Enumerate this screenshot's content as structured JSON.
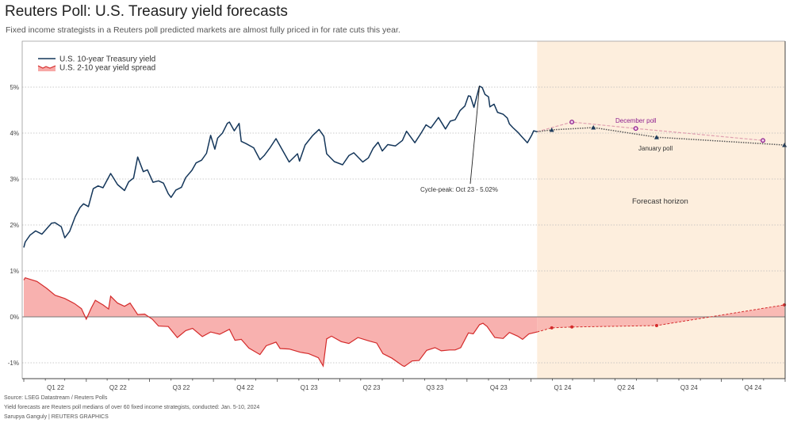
{
  "title": "Reuters Poll: U.S. Treasury yield forecasts",
  "subtitle": "Fixed income strategists in a Reuters poll predicted markets are almost fully priced in for rate cuts this year.",
  "footer": {
    "source": "Source: LSEG Datastream / Reuters Polls",
    "note": "Yield forecasts are Reuters poll medians of over 60 fixed income strategists, conducted: Jan. 5-10, 2024",
    "credit": "Sarupya Ganguly | REUTERS GRAPHICS"
  },
  "chart_data": {
    "type": "line",
    "title": "Reuters Poll: U.S. Treasury yield forecasts",
    "xlim": [
      "2022-01-01",
      "2024-12-31"
    ],
    "ylim": [
      -1.4,
      6
    ],
    "yticks": [
      -1,
      0,
      1,
      2,
      3,
      4,
      5
    ],
    "ytick_labels": [
      "-1%",
      "0%",
      "1%",
      "2%",
      "3%",
      "4%",
      "5%"
    ],
    "xtick_labels": [
      "Q1 22",
      "Q2 22",
      "Q3 22",
      "Q4 22",
      "Q1 23",
      "Q2 23",
      "Q3 23",
      "Q4 23",
      "Q1 24",
      "Q2 24",
      "Q3 24",
      "Q4 24"
    ],
    "grid": true,
    "legend_placement": "top-left",
    "forecast_region": {
      "start": "2024-01-10",
      "label": "Forecast horizon",
      "color": "#fdeedd"
    },
    "annotation": {
      "text": "Cycle-peak: Oct 23 - 5.02%",
      "date": "2023-10-19",
      "value": 5.02
    },
    "colors": {
      "yield": "#14365a",
      "spread_line": "#d42a2a",
      "spread_fill": "#f7a8a6",
      "december_poll": "#8e1f8e",
      "january_poll": "#1e3b5c"
    },
    "series": [
      {
        "name": "U.S. 10-year Treasury yield",
        "points": [
          [
            "2022-01-01",
            1.51
          ],
          [
            "2022-01-03",
            1.63
          ],
          [
            "2022-01-10",
            1.78
          ],
          [
            "2022-01-18",
            1.87
          ],
          [
            "2022-01-27",
            1.8
          ],
          [
            "2022-02-10",
            2.04
          ],
          [
            "2022-02-15",
            2.05
          ],
          [
            "2022-02-24",
            1.96
          ],
          [
            "2022-03-01",
            1.72
          ],
          [
            "2022-03-08",
            1.86
          ],
          [
            "2022-03-16",
            2.18
          ],
          [
            "2022-03-23",
            2.38
          ],
          [
            "2022-03-28",
            2.46
          ],
          [
            "2022-04-04",
            2.4
          ],
          [
            "2022-04-11",
            2.79
          ],
          [
            "2022-04-18",
            2.85
          ],
          [
            "2022-04-25",
            2.81
          ],
          [
            "2022-05-06",
            3.12
          ],
          [
            "2022-05-09",
            3.05
          ],
          [
            "2022-05-16",
            2.88
          ],
          [
            "2022-05-26",
            2.75
          ],
          [
            "2022-06-01",
            2.94
          ],
          [
            "2022-06-08",
            3.02
          ],
          [
            "2022-06-14",
            3.48
          ],
          [
            "2022-06-22",
            3.16
          ],
          [
            "2022-06-28",
            3.2
          ],
          [
            "2022-07-06",
            2.93
          ],
          [
            "2022-07-14",
            2.96
          ],
          [
            "2022-07-21",
            2.91
          ],
          [
            "2022-07-28",
            2.68
          ],
          [
            "2022-08-01",
            2.6
          ],
          [
            "2022-08-08",
            2.76
          ],
          [
            "2022-08-16",
            2.82
          ],
          [
            "2022-08-22",
            3.03
          ],
          [
            "2022-08-31",
            3.19
          ],
          [
            "2022-09-06",
            3.35
          ],
          [
            "2022-09-14",
            3.41
          ],
          [
            "2022-09-21",
            3.56
          ],
          [
            "2022-09-27",
            3.95
          ],
          [
            "2022-10-03",
            3.65
          ],
          [
            "2022-10-07",
            3.89
          ],
          [
            "2022-10-14",
            4.0
          ],
          [
            "2022-10-21",
            4.21
          ],
          [
            "2022-10-24",
            4.24
          ],
          [
            "2022-10-31",
            4.05
          ],
          [
            "2022-11-07",
            4.21
          ],
          [
            "2022-11-10",
            3.82
          ],
          [
            "2022-11-17",
            3.77
          ],
          [
            "2022-11-28",
            3.68
          ],
          [
            "2022-12-07",
            3.42
          ],
          [
            "2022-12-13",
            3.51
          ],
          [
            "2022-12-21",
            3.67
          ],
          [
            "2022-12-30",
            3.88
          ],
          [
            "2023-01-05",
            3.72
          ],
          [
            "2023-01-18",
            3.37
          ],
          [
            "2023-01-30",
            3.55
          ],
          [
            "2023-02-02",
            3.39
          ],
          [
            "2023-02-10",
            3.74
          ],
          [
            "2023-02-21",
            3.95
          ],
          [
            "2023-03-02",
            4.08
          ],
          [
            "2023-03-09",
            3.93
          ],
          [
            "2023-03-13",
            3.55
          ],
          [
            "2023-03-24",
            3.38
          ],
          [
            "2023-04-05",
            3.31
          ],
          [
            "2023-04-14",
            3.51
          ],
          [
            "2023-04-21",
            3.57
          ],
          [
            "2023-05-04",
            3.37
          ],
          [
            "2023-05-12",
            3.46
          ],
          [
            "2023-05-19",
            3.67
          ],
          [
            "2023-05-26",
            3.8
          ],
          [
            "2023-06-01",
            3.61
          ],
          [
            "2023-06-09",
            3.75
          ],
          [
            "2023-06-20",
            3.72
          ],
          [
            "2023-06-30",
            3.84
          ],
          [
            "2023-07-06",
            4.04
          ],
          [
            "2023-07-18",
            3.79
          ],
          [
            "2023-07-27",
            4.0
          ],
          [
            "2023-08-03",
            4.18
          ],
          [
            "2023-08-10",
            4.11
          ],
          [
            "2023-08-21",
            4.34
          ],
          [
            "2023-08-31",
            4.09
          ],
          [
            "2023-09-07",
            4.26
          ],
          [
            "2023-09-14",
            4.29
          ],
          [
            "2023-09-21",
            4.49
          ],
          [
            "2023-09-28",
            4.59
          ],
          [
            "2023-10-03",
            4.81
          ],
          [
            "2023-10-06",
            4.8
          ],
          [
            "2023-10-11",
            4.56
          ],
          [
            "2023-10-19",
            5.02
          ],
          [
            "2023-10-23",
            4.99
          ],
          [
            "2023-10-27",
            4.84
          ],
          [
            "2023-11-01",
            4.79
          ],
          [
            "2023-11-03",
            4.57
          ],
          [
            "2023-11-09",
            4.63
          ],
          [
            "2023-11-14",
            4.45
          ],
          [
            "2023-11-22",
            4.41
          ],
          [
            "2023-11-28",
            4.33
          ],
          [
            "2023-12-01",
            4.2
          ],
          [
            "2023-12-06",
            4.12
          ],
          [
            "2023-12-13",
            4.02
          ],
          [
            "2023-12-19",
            3.92
          ],
          [
            "2023-12-27",
            3.79
          ],
          [
            "2024-01-02",
            3.95
          ],
          [
            "2024-01-05",
            4.05
          ],
          [
            "2024-01-10",
            4.03
          ]
        ]
      },
      {
        "name": "U.S. 2-10 year yield spread",
        "points": [
          [
            "2022-01-01",
            0.8
          ],
          [
            "2022-01-03",
            0.85
          ],
          [
            "2022-01-20",
            0.77
          ],
          [
            "2022-02-03",
            0.62
          ],
          [
            "2022-02-15",
            0.47
          ],
          [
            "2022-03-01",
            0.4
          ],
          [
            "2022-03-15",
            0.29
          ],
          [
            "2022-03-25",
            0.18
          ],
          [
            "2022-04-01",
            -0.05
          ],
          [
            "2022-04-08",
            0.19
          ],
          [
            "2022-04-14",
            0.36
          ],
          [
            "2022-04-25",
            0.26
          ],
          [
            "2022-05-03",
            0.17
          ],
          [
            "2022-05-06",
            0.45
          ],
          [
            "2022-05-16",
            0.3
          ],
          [
            "2022-05-26",
            0.23
          ],
          [
            "2022-06-03",
            0.3
          ],
          [
            "2022-06-14",
            0.05
          ],
          [
            "2022-06-24",
            0.06
          ],
          [
            "2022-07-05",
            -0.05
          ],
          [
            "2022-07-14",
            -0.2
          ],
          [
            "2022-07-28",
            -0.21
          ],
          [
            "2022-08-10",
            -0.45
          ],
          [
            "2022-08-22",
            -0.3
          ],
          [
            "2022-09-01",
            -0.25
          ],
          [
            "2022-09-15",
            -0.43
          ],
          [
            "2022-09-27",
            -0.33
          ],
          [
            "2022-10-10",
            -0.38
          ],
          [
            "2022-10-24",
            -0.27
          ],
          [
            "2022-11-01",
            -0.51
          ],
          [
            "2022-11-10",
            -0.49
          ],
          [
            "2022-11-21",
            -0.68
          ],
          [
            "2022-12-07",
            -0.82
          ],
          [
            "2022-12-16",
            -0.63
          ],
          [
            "2022-12-30",
            -0.55
          ],
          [
            "2023-01-05",
            -0.69
          ],
          [
            "2023-01-18",
            -0.7
          ],
          [
            "2023-02-03",
            -0.77
          ],
          [
            "2023-02-15",
            -0.8
          ],
          [
            "2023-03-01",
            -0.89
          ],
          [
            "2023-03-08",
            -1.07
          ],
          [
            "2023-03-13",
            -0.48
          ],
          [
            "2023-03-20",
            -0.42
          ],
          [
            "2023-04-03",
            -0.54
          ],
          [
            "2023-04-14",
            -0.58
          ],
          [
            "2023-04-27",
            -0.45
          ],
          [
            "2023-05-12",
            -0.52
          ],
          [
            "2023-05-24",
            -0.57
          ],
          [
            "2023-06-02",
            -0.8
          ],
          [
            "2023-06-15",
            -0.9
          ],
          [
            "2023-06-30",
            -1.06
          ],
          [
            "2023-07-03",
            -1.08
          ],
          [
            "2023-07-14",
            -0.96
          ],
          [
            "2023-07-24",
            -0.95
          ],
          [
            "2023-08-04",
            -0.73
          ],
          [
            "2023-08-16",
            -0.67
          ],
          [
            "2023-08-25",
            -0.74
          ],
          [
            "2023-09-06",
            -0.72
          ],
          [
            "2023-09-14",
            -0.72
          ],
          [
            "2023-09-22",
            -0.67
          ],
          [
            "2023-10-03",
            -0.35
          ],
          [
            "2023-10-10",
            -0.37
          ],
          [
            "2023-10-19",
            -0.17
          ],
          [
            "2023-10-24",
            -0.14
          ],
          [
            "2023-10-30",
            -0.21
          ],
          [
            "2023-11-10",
            -0.45
          ],
          [
            "2023-11-22",
            -0.47
          ],
          [
            "2023-12-01",
            -0.34
          ],
          [
            "2023-12-13",
            -0.42
          ],
          [
            "2023-12-20",
            -0.49
          ],
          [
            "2023-12-29",
            -0.37
          ],
          [
            "2024-01-10",
            -0.33
          ]
        ]
      }
    ],
    "forecasts": {
      "january_poll": {
        "label": "January poll",
        "points": [
          [
            "2024-01-10",
            4.03
          ],
          [
            "2024-01-31",
            4.07
          ],
          [
            "2024-03-31",
            4.12
          ],
          [
            "2024-06-30",
            3.91
          ],
          [
            "2024-12-31",
            3.74
          ]
        ]
      },
      "december_poll": {
        "label": "December poll",
        "points": [
          [
            "2024-01-10",
            4.03
          ],
          [
            "2024-02-29",
            4.24
          ],
          [
            "2024-05-31",
            4.1
          ],
          [
            "2024-11-30",
            3.84
          ]
        ]
      },
      "spread": {
        "points": [
          [
            "2024-01-10",
            -0.33
          ],
          [
            "2024-01-31",
            -0.24
          ],
          [
            "2024-02-29",
            -0.22
          ],
          [
            "2024-06-30",
            -0.19
          ],
          [
            "2024-12-31",
            0.26
          ]
        ]
      }
    }
  }
}
